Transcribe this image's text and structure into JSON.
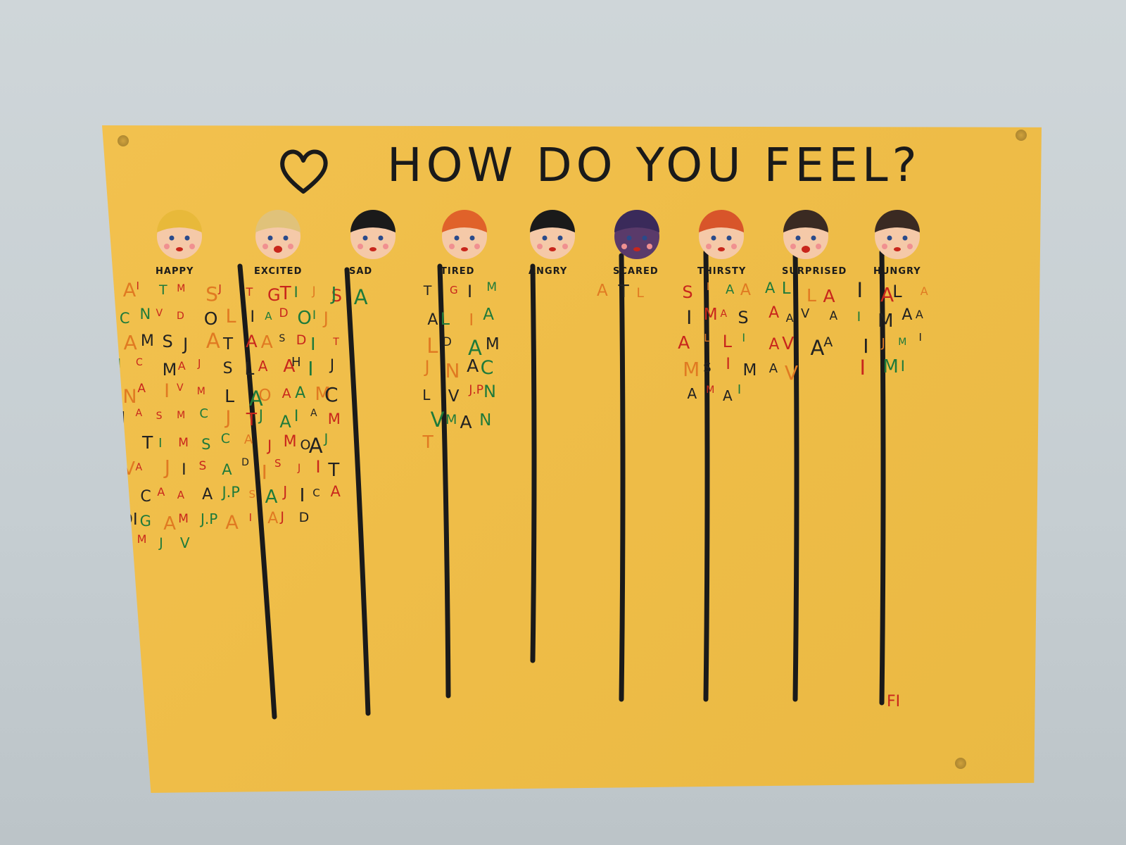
{
  "poster": {
    "title": "HOW DO YOU FEEL?",
    "columns": [
      {
        "label": "HAPPY",
        "face": "happy-crowned-face",
        "marks": [
          "A",
          "I",
          "T",
          "M",
          "S",
          "J",
          "C",
          "N",
          "V",
          "D",
          "O",
          "L",
          "A",
          "M",
          "S",
          "J",
          "A",
          "T",
          "I",
          "C",
          "M",
          "A",
          "J",
          "S",
          "N",
          "A",
          "I",
          "V",
          "M",
          "L",
          "J",
          "A",
          "S",
          "M",
          "C",
          "J",
          "A",
          "T",
          "I",
          "M",
          "S",
          "C",
          "V",
          "A",
          "J",
          "I",
          "S",
          "A",
          "Ç",
          "C",
          "A",
          "A",
          "A",
          "J.P",
          "DI",
          "G",
          "A",
          "M",
          "J.P",
          "A",
          "S",
          "M",
          "J",
          "V"
        ]
      },
      {
        "label": "EXCITED",
        "face": "excited-face",
        "marks": [
          "T",
          "G",
          "T",
          "I",
          "J",
          "S",
          "I",
          "A",
          "D",
          "O",
          "I",
          "J",
          "A",
          "A",
          "S",
          "D",
          "I",
          "T",
          "L",
          "A",
          "A",
          "H",
          "I",
          "J",
          "A",
          "O",
          "A",
          "A",
          "M",
          "C",
          "T",
          "J",
          "A",
          "I",
          "A",
          "M",
          "A",
          "J",
          "M",
          "O",
          "A",
          "J",
          "D",
          "I",
          "S",
          "J",
          "I",
          "T",
          "S",
          "A",
          "J",
          "I",
          "C",
          "A",
          "I",
          "A",
          "J",
          "D"
        ]
      },
      {
        "label": "SAD",
        "face": "sad-face",
        "marks": [
          "J",
          "A"
        ]
      },
      {
        "label": "TIRED",
        "face": "tired-face",
        "marks": [
          "T",
          "G",
          "I",
          "M",
          "A",
          "L",
          "I",
          "A",
          "L",
          "D",
          "A",
          "M",
          "J",
          "N",
          "A",
          "C",
          "L",
          "V",
          "J.P",
          "N",
          "V",
          "M",
          "A",
          "N",
          "T"
        ]
      },
      {
        "label": "ANGRY",
        "face": "angry-face",
        "marks": []
      },
      {
        "label": "SCARED",
        "face": "scared-face",
        "marks": [
          "A",
          "T",
          "L"
        ]
      },
      {
        "label": "THIRSTY",
        "face": "thirsty-face",
        "marks": [
          "S",
          "I",
          "A",
          "A",
          "I",
          "M",
          "A",
          "S",
          "A",
          "L",
          "L",
          "I",
          "M",
          "S",
          "I",
          "M",
          "A",
          "M",
          "A",
          "I"
        ]
      },
      {
        "label": "SURPRISED",
        "face": "surprised-face",
        "marks": [
          "A",
          "L",
          "L",
          "A",
          "A",
          "A",
          "V",
          "A",
          "A",
          "V",
          "A",
          "A",
          "A",
          "V"
        ]
      },
      {
        "label": "HUNGRY",
        "face": "hungry-face",
        "marks": [
          "I",
          "A",
          "L",
          "A",
          "I",
          "M",
          "A",
          "A",
          "I",
          "J",
          "M",
          "I",
          "I",
          "M",
          "I"
        ]
      }
    ],
    "footer_mark": "FI",
    "colors": {
      "paper": "#f0be48",
      "ink": "#1a1a1a",
      "red": "#c8261c",
      "green": "#1f7a3a",
      "black": "#222222",
      "orange": "#e07a22"
    }
  }
}
